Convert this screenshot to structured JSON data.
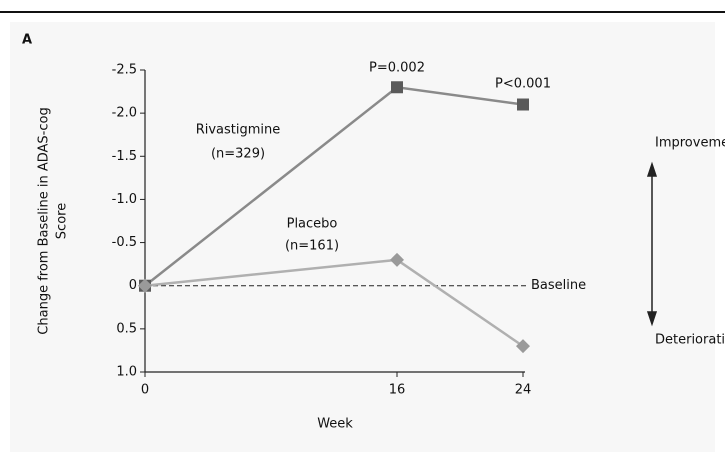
{
  "chart_data": {
    "type": "line",
    "panel_label": "A",
    "x_label": "Week",
    "y_label_lines": [
      "Change from Baseline in ADAS-cog",
      "Score"
    ],
    "x": [
      0,
      16,
      24
    ],
    "series": [
      {
        "name": "Rivastigmine",
        "color": "#8a8a8a",
        "marker_color": "#5a5a5a",
        "marker": "square",
        "values": [
          0,
          -2.3,
          -2.1
        ]
      },
      {
        "name": "Placebo",
        "color": "#b0b0b0",
        "marker_color": "#9a9a9a",
        "marker": "diamond",
        "values": [
          0,
          -0.3,
          0.7
        ]
      }
    ],
    "series_notes": [
      "(n=329)",
      "(n=161)"
    ],
    "p_values": [
      "P=0.002",
      "P<0.001"
    ],
    "baseline_label": "Baseline",
    "direction_labels": [
      "Improvement",
      "Deterioration"
    ],
    "xlim": [
      0,
      24
    ],
    "xticks": [
      0,
      16,
      24
    ],
    "ylim": [
      1,
      -2.5
    ],
    "yticks": [
      -2.5,
      {
        "value": -2,
        "label": "-2.0"
      },
      -1.5,
      {
        "value": -1,
        "label": "-1.0"
      },
      -0.5,
      0,
      0.5,
      {
        "value": 1,
        "label": "1.0"
      }
    ]
  }
}
